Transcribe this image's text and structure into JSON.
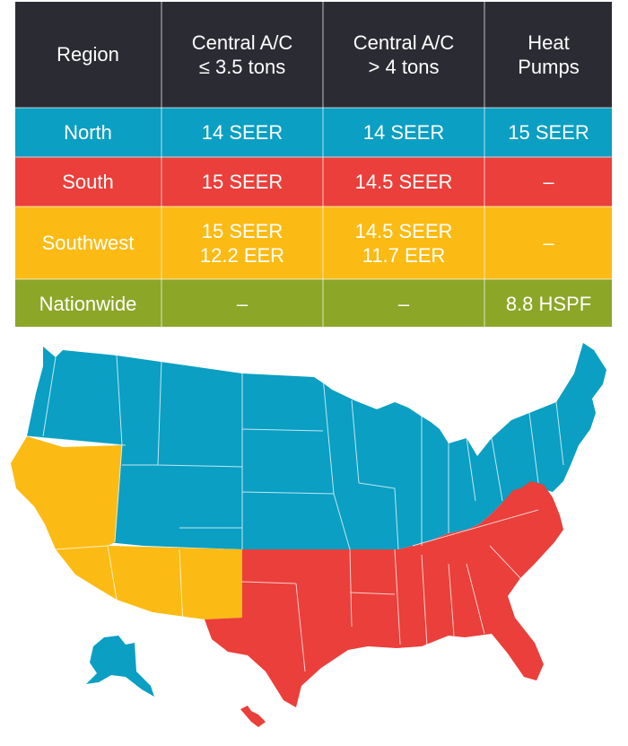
{
  "table": {
    "headers": {
      "region": "Region",
      "small_ac_line1": "Central A/C",
      "small_ac_line2": "≤ 3.5 tons",
      "large_ac_line1": "Central A/C",
      "large_ac_line2": "> 4 tons",
      "heat_pumps_line1": "Heat",
      "heat_pumps_line2": "Pumps"
    },
    "rows": [
      {
        "region": "North",
        "small_ac": "14 SEER",
        "small_ac_2": "",
        "large_ac": "14 SEER",
        "large_ac_2": "",
        "heat_pumps": "15 SEER"
      },
      {
        "region": "South",
        "small_ac": "15 SEER",
        "small_ac_2": "",
        "large_ac": "14.5 SEER",
        "large_ac_2": "",
        "heat_pumps": "–"
      },
      {
        "region": "Southwest",
        "small_ac": "15 SEER",
        "small_ac_2": "12.2 EER",
        "large_ac": "14.5 SEER",
        "large_ac_2": "11.7 EER",
        "heat_pumps": "–"
      },
      {
        "region": "Nationwide",
        "small_ac": "–",
        "small_ac_2": "",
        "large_ac": "–",
        "large_ac_2": "",
        "heat_pumps": "8.8 HSPF"
      }
    ]
  },
  "colors": {
    "header": "#2b2b33",
    "north": "#0a9fc3",
    "south": "#ea3f3a",
    "southwest": "#fbbb14",
    "nationwide": "#8ca628"
  }
}
